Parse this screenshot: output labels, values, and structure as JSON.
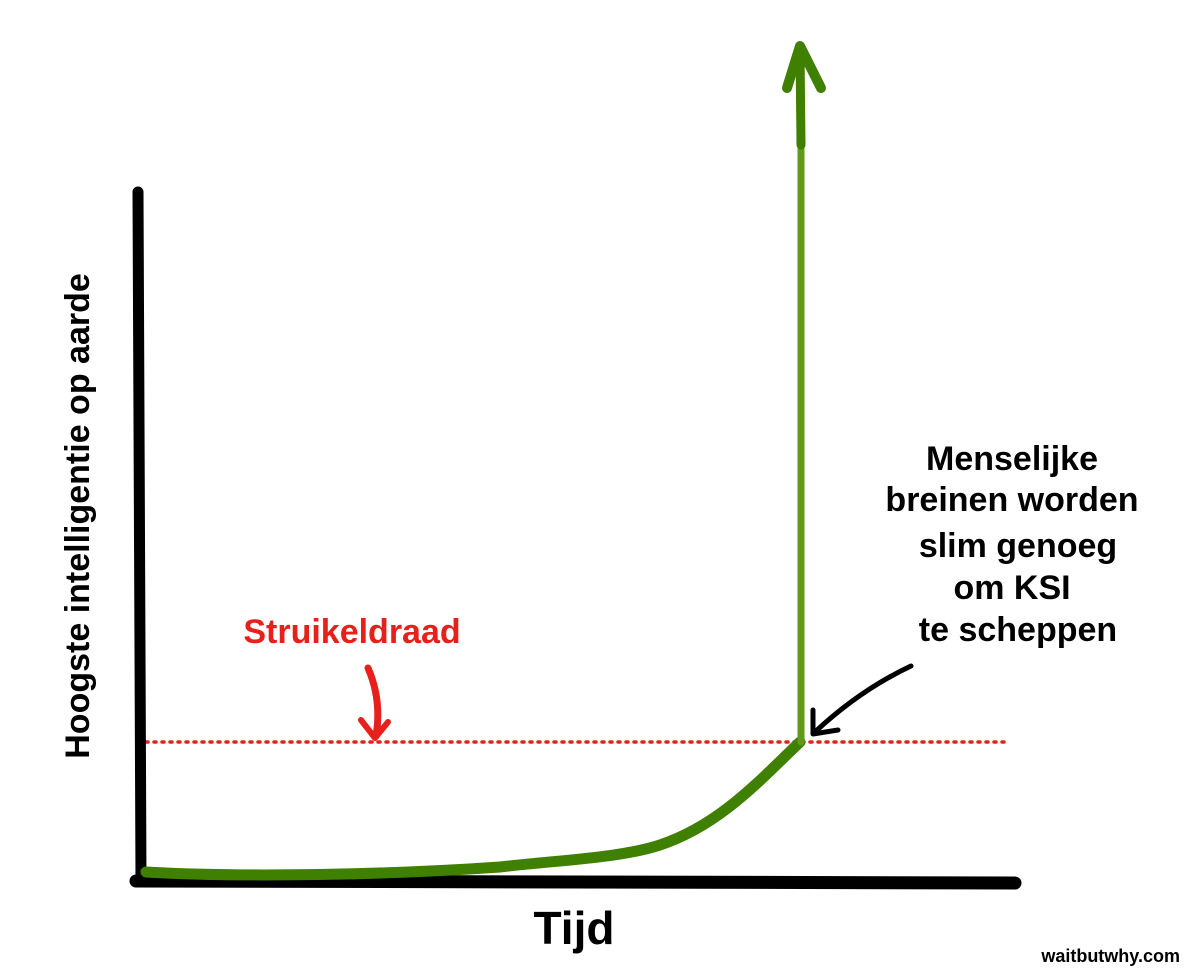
{
  "y_axis_label": "Hoogste intelligentie op aarde",
  "x_axis_label": "Tijd",
  "tripwire_label": "Struikeldraad",
  "annotation": [
    "Menselijke",
    "breinen worden",
    "slim genoeg",
    "om KSI",
    "te scheppen"
  ],
  "credit": "waitbutwhy.com"
}
